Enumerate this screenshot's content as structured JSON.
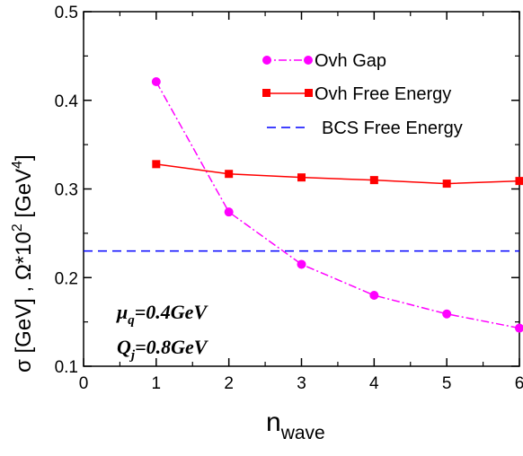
{
  "chart_data": {
    "type": "line",
    "x": [
      1,
      2,
      3,
      4,
      5,
      6
    ],
    "xlim": [
      0,
      6
    ],
    "ylim": [
      0.1,
      0.5
    ],
    "xticks": [
      "0",
      "1",
      "2",
      "3",
      "4",
      "5",
      "6"
    ],
    "yticks": [
      "0.1",
      "0.2",
      "0.3",
      "0.4",
      "0.5"
    ],
    "xlabel": {
      "main": "n",
      "sub": "wave"
    },
    "ylabel": {
      "p1": "σ [GeV]  ,  Ω*10",
      "sup1": "2",
      "p2": " [GeV",
      "sup2": "4",
      "p3": "]"
    },
    "series": [
      {
        "name": "Ovh Gap",
        "color": "#ff00ff",
        "style": "dash-dot",
        "marker": "circle",
        "values": [
          0.421,
          0.274,
          0.215,
          0.18,
          0.159,
          0.143
        ]
      },
      {
        "name": "Ovh Free Energy",
        "color": "#ff0000",
        "style": "solid",
        "marker": "square",
        "values": [
          0.328,
          0.317,
          0.313,
          0.31,
          0.306,
          0.309
        ]
      },
      {
        "name": "BCS Free Energy",
        "color": "#0000ff",
        "style": "dashed",
        "marker": "none",
        "constant": 0.23
      }
    ],
    "legend_position": "top-right",
    "annotations": [
      {
        "main": "μ",
        "sub": "q",
        "rest": "=0.4GeV"
      },
      {
        "main": "Q",
        "sub": "j",
        "rest": "=0.8GeV"
      }
    ]
  }
}
